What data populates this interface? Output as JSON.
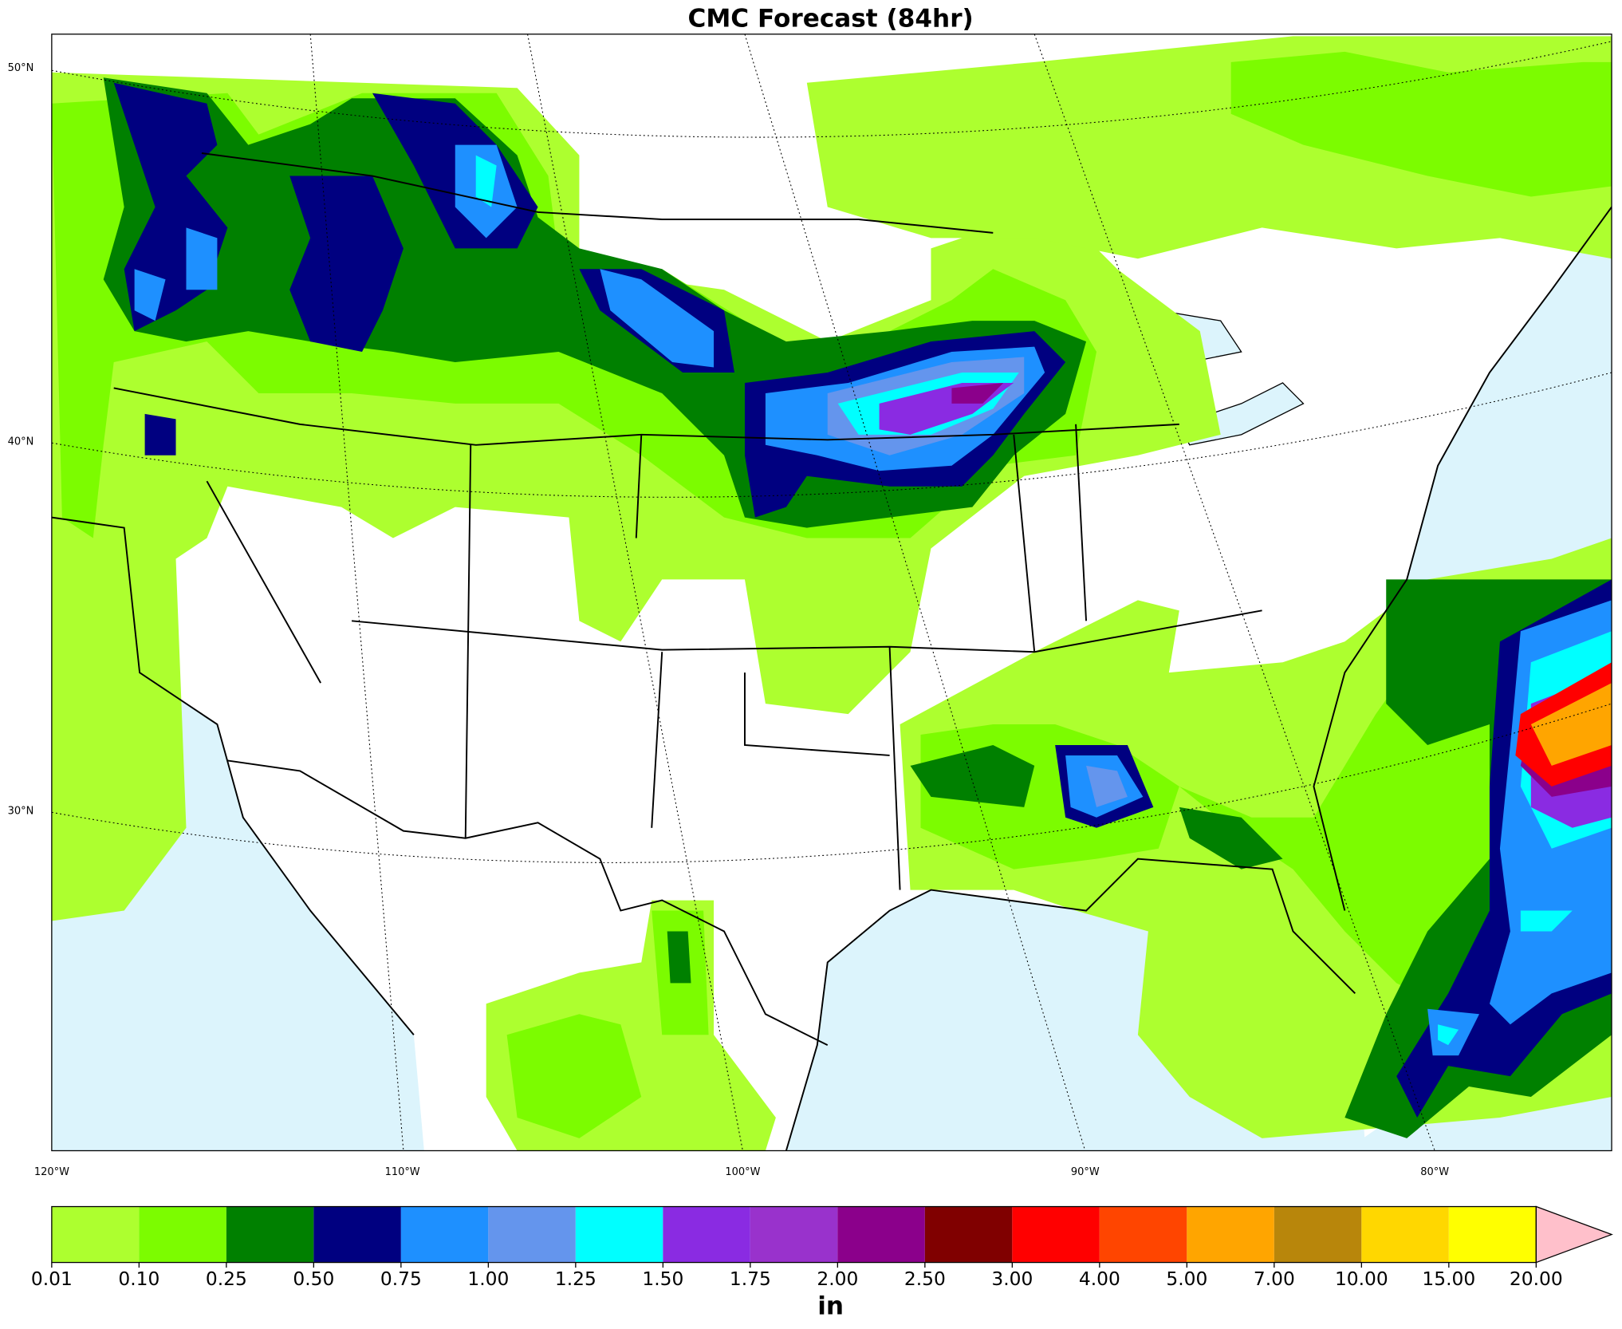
{
  "title": "CMC Forecast (84hr)",
  "latitude_labels": [
    "50°N",
    "40°N",
    "30°N"
  ],
  "longitude_labels": [
    "120°W",
    "110°W",
    "100°W",
    "90°W",
    "80°W"
  ],
  "colorbar": {
    "levels": [
      {
        "value": 0.01,
        "label": "0.01"
      },
      {
        "value": 0.1,
        "label": "0.10"
      },
      {
        "value": 0.25,
        "label": "0.25"
      },
      {
        "value": 0.5,
        "label": "0.50"
      },
      {
        "value": 0.75,
        "label": "0.75"
      },
      {
        "value": 1,
        "label": "1.00"
      },
      {
        "value": 1.25,
        "label": "1.25"
      },
      {
        "value": 1.5,
        "label": "1.50"
      },
      {
        "value": 1.75,
        "label": "1.75"
      },
      {
        "value": 2,
        "label": "2.00"
      },
      {
        "value": 2.5,
        "label": "2.50"
      },
      {
        "value": 3,
        "label": "3.00"
      },
      {
        "value": 4,
        "label": "4.00"
      },
      {
        "value": 5,
        "label": "5.00"
      },
      {
        "value": 7,
        "label": "7.00"
      },
      {
        "value": 10,
        "label": "10.00"
      },
      {
        "value": 15,
        "label": "15.00"
      },
      {
        "value": 20,
        "label": "20.00"
      }
    ],
    "colors": [
      "#adff2f",
      "#7cfc00",
      "#008000",
      "#000080",
      "#1e90ff",
      "#6495ed",
      "#00ffff",
      "#8a2be2",
      "#9932cc",
      "#8b008b",
      "#800000",
      "#ff0000",
      "#ff4500",
      "#ffa500",
      "#b8860b",
      "#ffd700",
      "#ffff00"
    ],
    "extend_color": "#ffc0cb",
    "label": "in"
  }
}
